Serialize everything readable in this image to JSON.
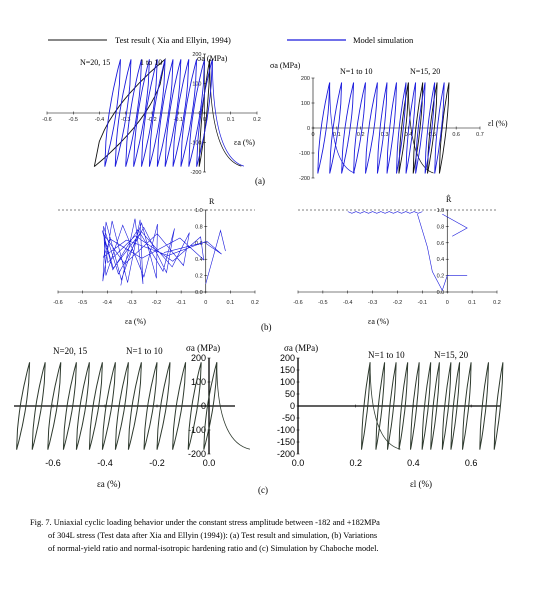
{
  "legend": {
    "test_label": "Test result ( Xia and Ellyin, 1994)",
    "model_label": "Model simulation",
    "test_color": "#111111",
    "model_color": "#1a1adc"
  },
  "panel_labels": {
    "a": "(a)",
    "b": "(b)",
    "c": "(c)"
  },
  "colors": {
    "model": "#1a1adc",
    "test": "#111111",
    "chaboche": "#2e3a2e"
  },
  "caption_lines": [
    "Fig. 7.  Uniaxial cyclic loading behavior under the constant stress amplitude between  -182 and +182MPa",
    "of 304L stress (Test data after Xia and Ellyin (1994)): (a) Test result and simulation, (b) Variations",
    "of normal-yield ratio and  normal-isotropic  hardening  ratio and  (c) Simulation by Chaboche  model."
  ],
  "chart_data": [
    {
      "id": "a-left",
      "type": "line",
      "ylabel": "σa (MPa)",
      "xlabel": "εa (%)",
      "annotations": [
        "N=20, 15",
        "1 to 10"
      ],
      "xlim": [
        -0.6,
        0.2
      ],
      "ylim": [
        -200,
        200
      ],
      "xticks": [
        -0.6,
        -0.5,
        -0.4,
        -0.3,
        -0.2,
        -0.1,
        0,
        0.1,
        0.2
      ],
      "yticks": [
        200,
        100,
        0,
        -100,
        -200
      ],
      "series": [
        {
          "role": "test",
          "loops": [
            [
              -0.02,
              0.02
            ],
            [
              -0.42,
              -0.15
            ]
          ]
        },
        {
          "role": "model",
          "loops": [
            [
              -0.03,
              0.03
            ],
            [
              -0.06,
              0.0
            ],
            [
              -0.09,
              -0.03
            ],
            [
              -0.12,
              -0.06
            ],
            [
              -0.15,
              -0.09
            ],
            [
              -0.18,
              -0.12
            ],
            [
              -0.21,
              -0.15
            ],
            [
              -0.24,
              -0.18
            ],
            [
              -0.27,
              -0.21
            ],
            [
              -0.3,
              -0.24
            ],
            [
              -0.34,
              -0.28
            ],
            [
              -0.38,
              -0.32
            ]
          ]
        }
      ]
    },
    {
      "id": "a-right",
      "type": "line",
      "ylabel": "σa (MPa)",
      "xlabel": "εl (%)",
      "annotations": [
        "N=1 to 10",
        "N=15, 20"
      ],
      "xlim": [
        0,
        0.7
      ],
      "ylim": [
        -200,
        200
      ],
      "xticks": [
        0,
        0.1,
        0.2,
        0.3,
        0.4,
        0.5,
        0.6,
        0.7
      ],
      "yticks": [
        200,
        100,
        0,
        -100,
        -200
      ],
      "series": [
        {
          "role": "test",
          "loops": [
            [
              0.36,
              0.4
            ],
            [
              0.42,
              0.46
            ],
            [
              0.48,
              0.52
            ],
            [
              0.53,
              0.57
            ]
          ]
        },
        {
          "role": "model",
          "loops": [
            [
              0.02,
              0.07
            ],
            [
              0.07,
              0.12
            ],
            [
              0.12,
              0.17
            ],
            [
              0.17,
              0.22
            ],
            [
              0.22,
              0.27
            ],
            [
              0.27,
              0.31
            ],
            [
              0.31,
              0.35
            ],
            [
              0.35,
              0.39
            ],
            [
              0.39,
              0.43
            ],
            [
              0.43,
              0.47
            ],
            [
              0.47,
              0.51
            ],
            [
              0.51,
              0.55
            ]
          ]
        }
      ]
    },
    {
      "id": "b-left",
      "type": "line",
      "ylabel": "R",
      "xlabel": "εa (%)",
      "xlim": [
        -0.6,
        0.2
      ],
      "ylim": [
        0,
        1.0
      ],
      "xticks": [
        -0.6,
        -0.5,
        -0.4,
        -0.3,
        -0.2,
        -0.1,
        0,
        0.1,
        0.2
      ],
      "yticks": [
        1.0,
        0.8,
        0.6,
        0.4,
        0.2,
        0.0
      ],
      "series": [
        {
          "role": "model",
          "x_range": [
            -0.42,
            0.08
          ],
          "y_range": [
            0.0,
            0.95
          ]
        }
      ]
    },
    {
      "id": "b-right",
      "type": "line",
      "ylabel": "R̂",
      "xlabel": "εa (%)",
      "xlim": [
        -0.6,
        0.2
      ],
      "ylim": [
        0,
        1.0
      ],
      "xticks": [
        -0.6,
        -0.5,
        -0.4,
        -0.3,
        -0.2,
        -0.1,
        0,
        0.1,
        0.2
      ],
      "yticks": [
        1.0,
        0.8,
        0.6,
        0.4,
        0.2,
        0
      ],
      "series": [
        {
          "role": "model",
          "x_range": [
            -0.42,
            0.08
          ],
          "y_range": [
            0.0,
            1.0
          ]
        }
      ]
    },
    {
      "id": "c-left",
      "type": "line",
      "ylabel": "σa (MPa)",
      "xlabel": "εa (%)",
      "annotations": [
        "N=20, 15",
        "N=1  to 10"
      ],
      "xlim": [
        -0.75,
        0.1
      ],
      "ylim": [
        -200,
        200
      ],
      "xticks": [
        -0.6,
        -0.4,
        -0.2,
        0.0
      ],
      "yticks": [
        200,
        100,
        0,
        -100,
        -200
      ],
      "series": [
        {
          "role": "chaboche",
          "loops": [
            [
              -0.02,
              0.03
            ],
            [
              -0.08,
              -0.03
            ],
            [
              -0.14,
              -0.09
            ],
            [
              -0.2,
              -0.15
            ],
            [
              -0.25,
              -0.2
            ],
            [
              -0.31,
              -0.26
            ],
            [
              -0.36,
              -0.31
            ],
            [
              -0.41,
              -0.36
            ],
            [
              -0.46,
              -0.41
            ],
            [
              -0.51,
              -0.46
            ],
            [
              -0.56,
              -0.51
            ],
            [
              -0.62,
              -0.57
            ],
            [
              -0.68,
              -0.63
            ],
            [
              -0.74,
              -0.69
            ]
          ]
        }
      ]
    },
    {
      "id": "c-right",
      "type": "line",
      "ylabel": "σa (MPa)",
      "xlabel": "εl (%)",
      "annotations": [
        "N=1  to 10",
        "N=15,  20"
      ],
      "xlim": [
        0,
        0.7
      ],
      "ylim": [
        -200,
        200
      ],
      "xticks": [
        0.0,
        0.2,
        0.4,
        0.6
      ],
      "yticks": [
        200,
        150,
        100,
        50,
        0,
        -50,
        -100,
        -150,
        -200
      ],
      "series": [
        {
          "role": "chaboche",
          "loops": [
            [
              0.22,
              0.25
            ],
            [
              0.27,
              0.3
            ],
            [
              0.31,
              0.34
            ],
            [
              0.35,
              0.38
            ],
            [
              0.39,
              0.42
            ],
            [
              0.43,
              0.46
            ],
            [
              0.46,
              0.49
            ],
            [
              0.5,
              0.53
            ],
            [
              0.53,
              0.56
            ],
            [
              0.57,
              0.6
            ],
            [
              0.63,
              0.66
            ],
            [
              0.68,
              0.71
            ]
          ]
        }
      ]
    }
  ]
}
